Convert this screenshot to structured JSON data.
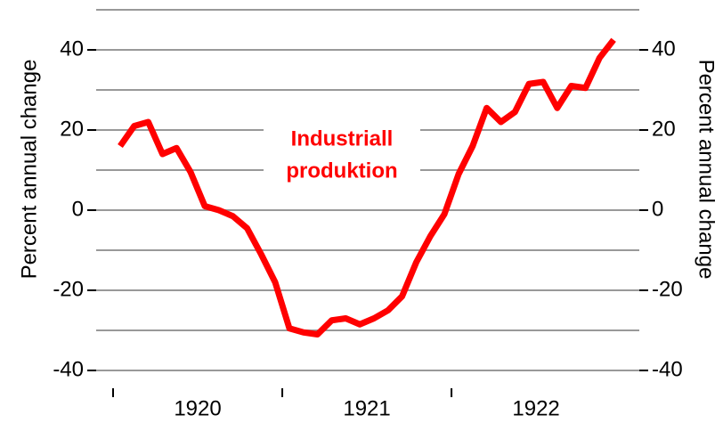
{
  "chart_data": {
    "type": "line",
    "y_label": "Percent annual change",
    "y2_label": "Percent annual change",
    "annotation": [
      "Industriall",
      "produktion"
    ],
    "x": [
      1920.042,
      1920.125,
      1920.208,
      1920.292,
      1920.375,
      1920.458,
      1920.542,
      1920.625,
      1920.708,
      1920.792,
      1920.875,
      1920.958,
      1921.042,
      1921.125,
      1921.208,
      1921.292,
      1921.375,
      1921.458,
      1921.542,
      1921.625,
      1921.708,
      1921.792,
      1921.875,
      1921.958,
      1922.042,
      1922.125,
      1922.208,
      1922.292,
      1922.375,
      1922.458,
      1922.542,
      1922.625,
      1922.708,
      1922.792,
      1922.875,
      1922.958
    ],
    "series": [
      {
        "name": "Industriall produktion",
        "color": "#ff0000",
        "values": [
          16,
          21,
          22,
          14,
          15.5,
          9.5,
          1,
          0,
          -1.5,
          -4.5,
          -11,
          -18,
          -29.5,
          -30.5,
          -31,
          -27.5,
          -27,
          -28.5,
          -27,
          -25,
          -21.5,
          -13,
          -6.5,
          -1,
          9,
          16,
          25.5,
          22,
          24.5,
          31.5,
          32,
          25.5,
          31,
          30.5,
          38,
          42.5
        ]
      }
    ],
    "xlim": [
      1919.9,
      1923.11
    ],
    "xticks": [
      {
        "value": 1920,
        "label": "1920"
      },
      {
        "value": 1921,
        "label": "1921"
      },
      {
        "value": 1922,
        "label": "1922"
      }
    ],
    "ylim": [
      -40,
      50
    ],
    "yticks": [
      -40,
      -20,
      0,
      20,
      40
    ],
    "minor_yticks": [
      -30,
      -10,
      10,
      30,
      50
    ],
    "y2lim": [
      -40,
      50
    ],
    "y2ticks": [
      -40,
      -20,
      0,
      20,
      40
    ],
    "grid": true
  }
}
